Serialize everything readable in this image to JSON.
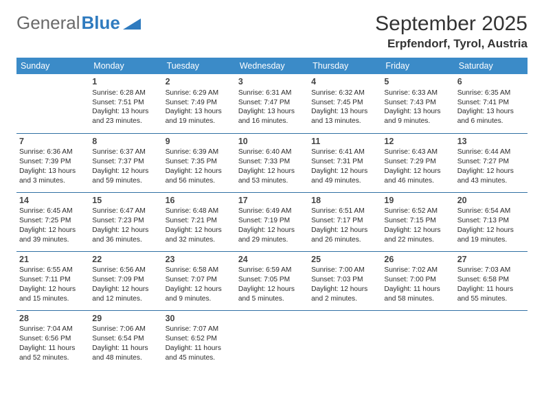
{
  "brand": {
    "part1": "General",
    "part2": "Blue"
  },
  "title": "September 2025",
  "location": "Erpfendorf, Tyrol, Austria",
  "colors": {
    "header_bg": "#3b8bc8",
    "header_text": "#ffffff",
    "rule": "#2f6fa3",
    "brand_accent": "#2f7bbf"
  },
  "weekdays": [
    "Sunday",
    "Monday",
    "Tuesday",
    "Wednesday",
    "Thursday",
    "Friday",
    "Saturday"
  ],
  "weeks": [
    [
      {
        "empty": true
      },
      {
        "day": "1",
        "sunrise": "Sunrise: 6:28 AM",
        "sunset": "Sunset: 7:51 PM",
        "daylight": "Daylight: 13 hours and 23 minutes."
      },
      {
        "day": "2",
        "sunrise": "Sunrise: 6:29 AM",
        "sunset": "Sunset: 7:49 PM",
        "daylight": "Daylight: 13 hours and 19 minutes."
      },
      {
        "day": "3",
        "sunrise": "Sunrise: 6:31 AM",
        "sunset": "Sunset: 7:47 PM",
        "daylight": "Daylight: 13 hours and 16 minutes."
      },
      {
        "day": "4",
        "sunrise": "Sunrise: 6:32 AM",
        "sunset": "Sunset: 7:45 PM",
        "daylight": "Daylight: 13 hours and 13 minutes."
      },
      {
        "day": "5",
        "sunrise": "Sunrise: 6:33 AM",
        "sunset": "Sunset: 7:43 PM",
        "daylight": "Daylight: 13 hours and 9 minutes."
      },
      {
        "day": "6",
        "sunrise": "Sunrise: 6:35 AM",
        "sunset": "Sunset: 7:41 PM",
        "daylight": "Daylight: 13 hours and 6 minutes."
      }
    ],
    [
      {
        "day": "7",
        "sunrise": "Sunrise: 6:36 AM",
        "sunset": "Sunset: 7:39 PM",
        "daylight": "Daylight: 13 hours and 3 minutes."
      },
      {
        "day": "8",
        "sunrise": "Sunrise: 6:37 AM",
        "sunset": "Sunset: 7:37 PM",
        "daylight": "Daylight: 12 hours and 59 minutes."
      },
      {
        "day": "9",
        "sunrise": "Sunrise: 6:39 AM",
        "sunset": "Sunset: 7:35 PM",
        "daylight": "Daylight: 12 hours and 56 minutes."
      },
      {
        "day": "10",
        "sunrise": "Sunrise: 6:40 AM",
        "sunset": "Sunset: 7:33 PM",
        "daylight": "Daylight: 12 hours and 53 minutes."
      },
      {
        "day": "11",
        "sunrise": "Sunrise: 6:41 AM",
        "sunset": "Sunset: 7:31 PM",
        "daylight": "Daylight: 12 hours and 49 minutes."
      },
      {
        "day": "12",
        "sunrise": "Sunrise: 6:43 AM",
        "sunset": "Sunset: 7:29 PM",
        "daylight": "Daylight: 12 hours and 46 minutes."
      },
      {
        "day": "13",
        "sunrise": "Sunrise: 6:44 AM",
        "sunset": "Sunset: 7:27 PM",
        "daylight": "Daylight: 12 hours and 43 minutes."
      }
    ],
    [
      {
        "day": "14",
        "sunrise": "Sunrise: 6:45 AM",
        "sunset": "Sunset: 7:25 PM",
        "daylight": "Daylight: 12 hours and 39 minutes."
      },
      {
        "day": "15",
        "sunrise": "Sunrise: 6:47 AM",
        "sunset": "Sunset: 7:23 PM",
        "daylight": "Daylight: 12 hours and 36 minutes."
      },
      {
        "day": "16",
        "sunrise": "Sunrise: 6:48 AM",
        "sunset": "Sunset: 7:21 PM",
        "daylight": "Daylight: 12 hours and 32 minutes."
      },
      {
        "day": "17",
        "sunrise": "Sunrise: 6:49 AM",
        "sunset": "Sunset: 7:19 PM",
        "daylight": "Daylight: 12 hours and 29 minutes."
      },
      {
        "day": "18",
        "sunrise": "Sunrise: 6:51 AM",
        "sunset": "Sunset: 7:17 PM",
        "daylight": "Daylight: 12 hours and 26 minutes."
      },
      {
        "day": "19",
        "sunrise": "Sunrise: 6:52 AM",
        "sunset": "Sunset: 7:15 PM",
        "daylight": "Daylight: 12 hours and 22 minutes."
      },
      {
        "day": "20",
        "sunrise": "Sunrise: 6:54 AM",
        "sunset": "Sunset: 7:13 PM",
        "daylight": "Daylight: 12 hours and 19 minutes."
      }
    ],
    [
      {
        "day": "21",
        "sunrise": "Sunrise: 6:55 AM",
        "sunset": "Sunset: 7:11 PM",
        "daylight": "Daylight: 12 hours and 15 minutes."
      },
      {
        "day": "22",
        "sunrise": "Sunrise: 6:56 AM",
        "sunset": "Sunset: 7:09 PM",
        "daylight": "Daylight: 12 hours and 12 minutes."
      },
      {
        "day": "23",
        "sunrise": "Sunrise: 6:58 AM",
        "sunset": "Sunset: 7:07 PM",
        "daylight": "Daylight: 12 hours and 9 minutes."
      },
      {
        "day": "24",
        "sunrise": "Sunrise: 6:59 AM",
        "sunset": "Sunset: 7:05 PM",
        "daylight": "Daylight: 12 hours and 5 minutes."
      },
      {
        "day": "25",
        "sunrise": "Sunrise: 7:00 AM",
        "sunset": "Sunset: 7:03 PM",
        "daylight": "Daylight: 12 hours and 2 minutes."
      },
      {
        "day": "26",
        "sunrise": "Sunrise: 7:02 AM",
        "sunset": "Sunset: 7:00 PM",
        "daylight": "Daylight: 11 hours and 58 minutes."
      },
      {
        "day": "27",
        "sunrise": "Sunrise: 7:03 AM",
        "sunset": "Sunset: 6:58 PM",
        "daylight": "Daylight: 11 hours and 55 minutes."
      }
    ],
    [
      {
        "day": "28",
        "sunrise": "Sunrise: 7:04 AM",
        "sunset": "Sunset: 6:56 PM",
        "daylight": "Daylight: 11 hours and 52 minutes."
      },
      {
        "day": "29",
        "sunrise": "Sunrise: 7:06 AM",
        "sunset": "Sunset: 6:54 PM",
        "daylight": "Daylight: 11 hours and 48 minutes."
      },
      {
        "day": "30",
        "sunrise": "Sunrise: 7:07 AM",
        "sunset": "Sunset: 6:52 PM",
        "daylight": "Daylight: 11 hours and 45 minutes."
      },
      {
        "empty": true
      },
      {
        "empty": true
      },
      {
        "empty": true
      },
      {
        "empty": true
      }
    ]
  ]
}
